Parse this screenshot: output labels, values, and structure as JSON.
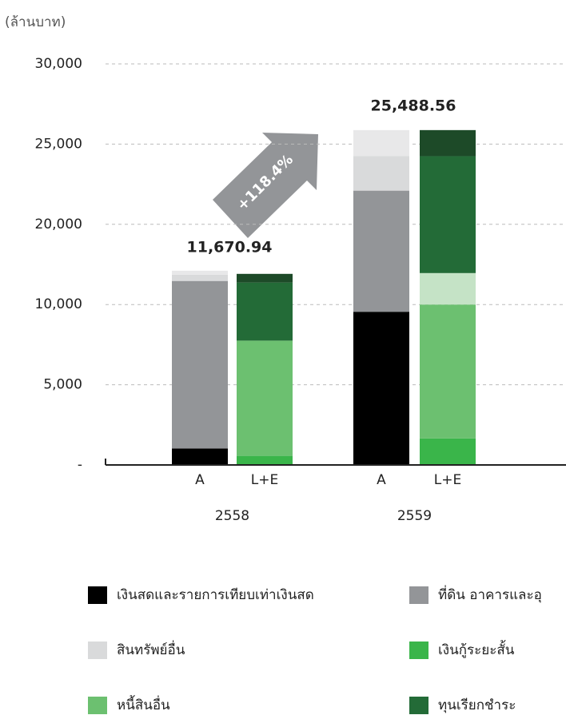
{
  "chart_data": {
    "type": "bar",
    "y_label": "(ล้านบาท)",
    "groups": [
      "2558",
      "2559"
    ],
    "categories": [
      "A",
      "L+E",
      "A",
      "L+E"
    ],
    "series": [
      {
        "name": "เงินสดและรายการเทียบเท่าเงินสด",
        "color": "#000000",
        "values": [
          1030,
          null,
          9550,
          null
        ]
      },
      {
        "name": "ที่ดิน อาคารและอุ",
        "color": "#939598",
        "values": [
          11910,
          null,
          12550,
          null
        ]
      },
      {
        "name": "สินทรัพย์อื่น",
        "color": "#d9dadb",
        "values": [
          785,
          null,
          2150,
          null
        ]
      },
      {
        "color": "#e8e8e9",
        "values": [
          491,
          null,
          1624,
          null
        ]
      },
      {
        "name": "เงินกู้ระยะสั้น",
        "color": "#3ab54a",
        "values": [
          null,
          567,
          null,
          1650
        ]
      },
      {
        "name": "หนี้สินอื่น",
        "color": "#6cc070",
        "values": [
          null,
          7183,
          null,
          8350
        ]
      },
      {
        "color": "#c5e3c6",
        "values": [
          null,
          null,
          null,
          3922
        ]
      },
      {
        "name": "ทุนเรียกชำระ",
        "color": "#236b37",
        "values": [
          null,
          4995,
          null,
          10328
        ]
      },
      {
        "color": "#1d4a28",
        "values": [
          null,
          1079,
          null,
          1624
        ]
      }
    ],
    "annotations": [
      "11,670.94",
      "25,488.56",
      "+118.4%"
    ],
    "ylim": [
      0,
      30000
    ],
    "yticks": [
      {
        "value": 0,
        "label": "-"
      },
      {
        "value": 5000,
        "label": "5,000"
      },
      {
        "value": 10000,
        "label": "10,000"
      },
      {
        "value": 20000,
        "label": "20,000"
      },
      {
        "value": 25000,
        "label": "25,000"
      },
      {
        "value": 30000,
        "label": "30,000"
      }
    ],
    "grid": true
  }
}
